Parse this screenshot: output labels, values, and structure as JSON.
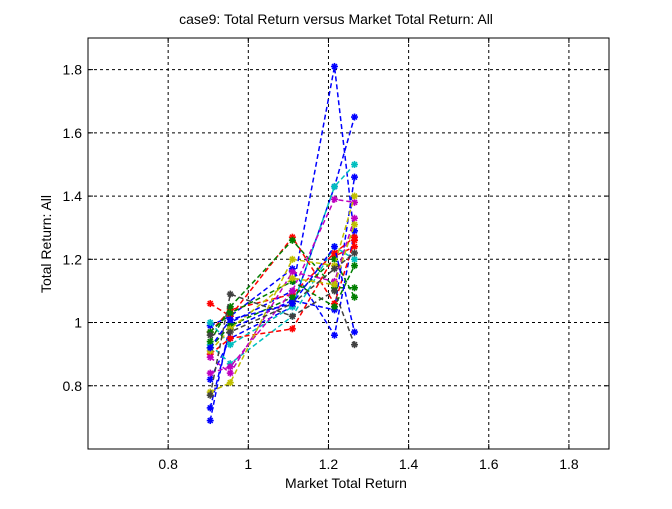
{
  "chart_data": {
    "type": "line",
    "title": "case9: Total Return versus Market Total Return: All",
    "xlabel": "Market Total Return",
    "ylabel": "Total Return: All",
    "xlim": [
      0.6,
      1.9
    ],
    "ylim": [
      0.6,
      1.9
    ],
    "xticks": [
      "0.8",
      "1",
      "1.2",
      "1.4",
      "1.6",
      "1.8"
    ],
    "yticks": [
      "0.8",
      "1",
      "1.2",
      "1.4",
      "1.6",
      "1.8"
    ],
    "grid": true,
    "line_style": "dashed",
    "marker": "asterisk",
    "x": [
      0.905,
      0.955,
      1.11,
      1.215,
      1.265
    ],
    "series": [
      {
        "color": "#0000ff",
        "values": [
          0.69,
          1.0,
          1.1,
          1.81,
          1.27
        ]
      },
      {
        "color": "#0000ff",
        "values": [
          0.82,
          0.95,
          1.05,
          1.43,
          1.65
        ]
      },
      {
        "color": "#0000ff",
        "values": [
          0.73,
          0.98,
          1.07,
          1.04,
          1.46
        ]
      },
      {
        "color": "#0000ff",
        "values": [
          0.99,
          1.02,
          1.17,
          0.96,
          1.29
        ]
      },
      {
        "color": "#00bfbf",
        "values": [
          1.0,
          0.93,
          1.05,
          1.43,
          1.5
        ]
      },
      {
        "color": "#00bfbf",
        "values": [
          0.93,
          0.87,
          1.02,
          1.24,
          1.2
        ]
      },
      {
        "color": "#ff0000",
        "values": [
          1.06,
          1.02,
          1.27,
          1.06,
          1.26
        ]
      },
      {
        "color": "#ff0000",
        "values": [
          0.9,
          0.95,
          0.98,
          1.21,
          1.24
        ]
      },
      {
        "color": "#ff0000",
        "values": [
          0.97,
          1.04,
          1.09,
          1.22,
          1.27
        ]
      },
      {
        "color": "#007f00",
        "values": [
          0.94,
          1.05,
          1.26,
          1.11,
          1.11
        ]
      },
      {
        "color": "#007f00",
        "values": [
          0.92,
          0.99,
          1.08,
          1.2,
          1.08
        ]
      },
      {
        "color": "#007f00",
        "values": [
          0.97,
          1.03,
          1.13,
          1.05,
          1.18
        ]
      },
      {
        "color": "#bf00bf",
        "values": [
          0.84,
          0.86,
          1.1,
          1.39,
          1.38
        ]
      },
      {
        "color": "#bf00bf",
        "values": [
          0.89,
          0.84,
          1.16,
          1.13,
          1.33
        ]
      },
      {
        "color": "#bfbf00",
        "values": [
          0.78,
          0.81,
          1.2,
          1.18,
          1.4
        ]
      },
      {
        "color": "#bfbf00",
        "values": [
          0.91,
          0.98,
          1.14,
          1.12,
          1.31
        ]
      },
      {
        "color": "#404040",
        "values": [
          0.77,
          1.09,
          1.02,
          1.1,
          0.93
        ]
      },
      {
        "color": "#404040",
        "values": [
          0.96,
          0.97,
          1.06,
          1.17,
          1.22
        ]
      },
      {
        "color": "#0000ff",
        "values": [
          0.92,
          1.01,
          1.06,
          1.24,
          0.97
        ]
      }
    ]
  }
}
